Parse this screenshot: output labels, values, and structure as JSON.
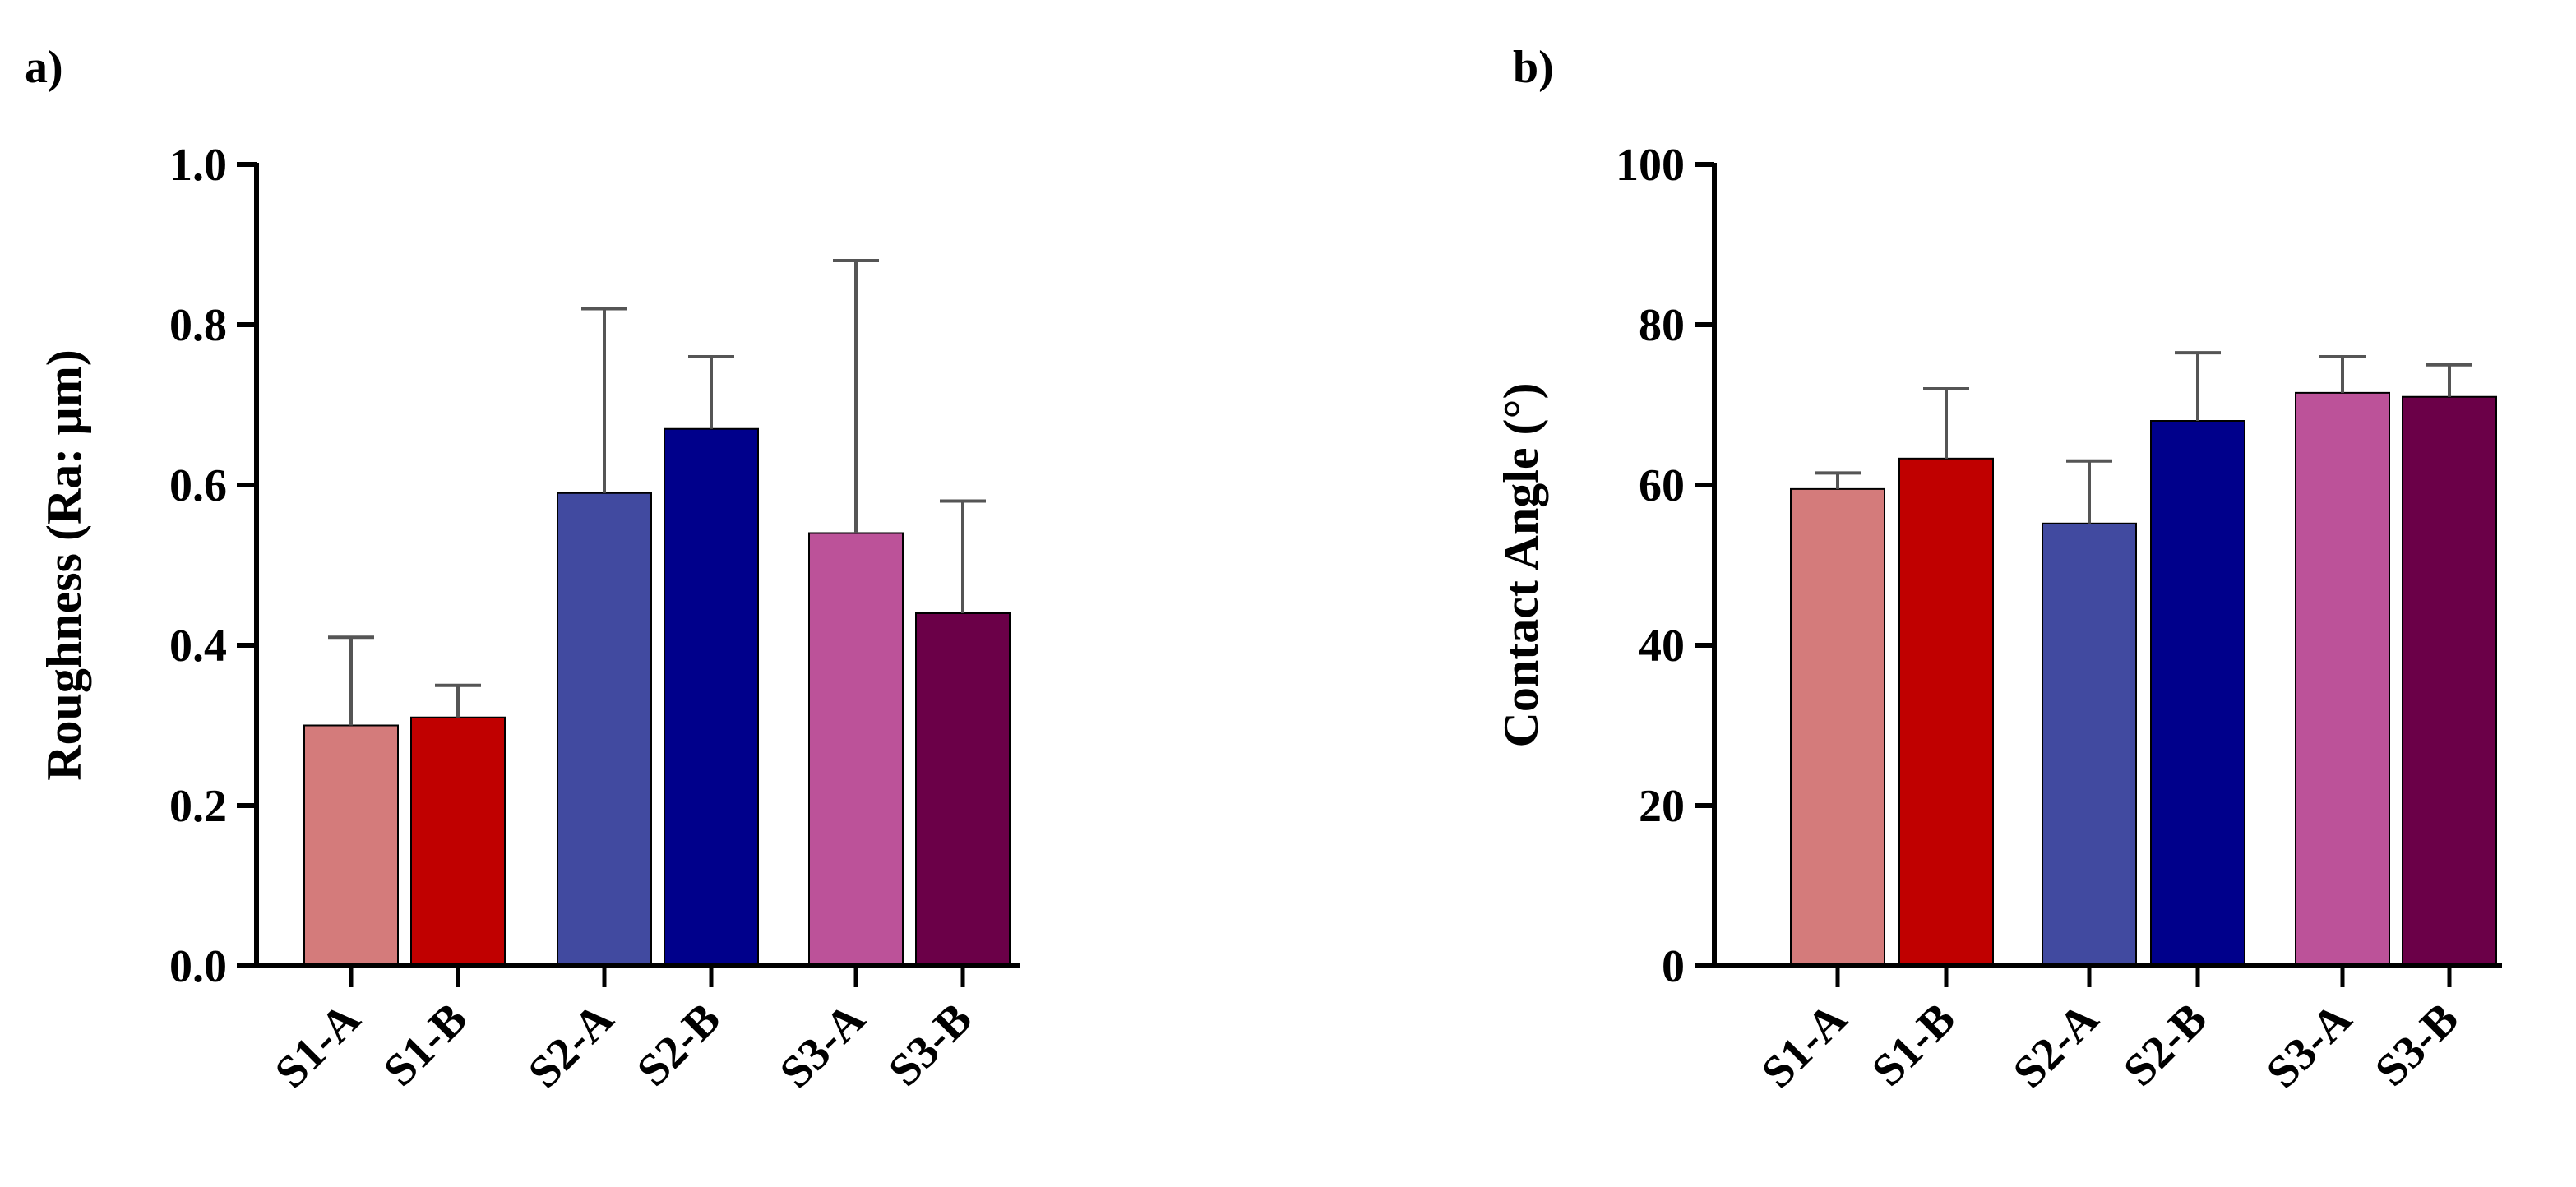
{
  "chart_data": [
    {
      "panel": "a)",
      "type": "bar",
      "title": "",
      "xlabel": "",
      "ylabel": "Roughness (Ra: µm)",
      "ylim": [
        0,
        1.0
      ],
      "yticks": [
        "0.0",
        "0.2",
        "0.4",
        "0.6",
        "0.8",
        "1.0"
      ],
      "ytick_values": [
        0,
        0.2,
        0.4,
        0.6,
        0.8,
        1.0
      ],
      "categories": [
        "S1-A",
        "S1-B",
        "S2-A",
        "S2-B",
        "S3-A",
        "S3-B"
      ],
      "groups": [
        [
          0,
          1
        ],
        [
          2,
          3
        ],
        [
          4,
          5
        ]
      ],
      "values": [
        0.3,
        0.31,
        0.59,
        0.67,
        0.54,
        0.44
      ],
      "error_upper": [
        0.41,
        0.35,
        0.82,
        0.76,
        0.88,
        0.58
      ],
      "colors": [
        "#d47b7b",
        "#c00000",
        "#414aa0",
        "#00008b",
        "#bc5299",
        "#6b0048"
      ]
    },
    {
      "panel": "b)",
      "type": "bar",
      "title": "",
      "xlabel": "",
      "ylabel": "Contact Angle (°)",
      "ylim": [
        0,
        100
      ],
      "yticks": [
        "0",
        "20",
        "40",
        "60",
        "80",
        "100"
      ],
      "ytick_values": [
        0,
        20,
        40,
        60,
        80,
        100
      ],
      "categories": [
        "S1-A",
        "S1-B",
        "S2-A",
        "S2-B",
        "S3-A",
        "S3-B"
      ],
      "groups": [
        [
          0,
          1
        ],
        [
          2,
          3
        ],
        [
          4,
          5
        ]
      ],
      "values": [
        59.5,
        63.3,
        55.2,
        68.0,
        71.5,
        71.0
      ],
      "error_upper": [
        61.5,
        72.0,
        63.0,
        76.5,
        76.0,
        75.0
      ],
      "colors": [
        "#d47b7b",
        "#c00000",
        "#414aa0",
        "#00008b",
        "#bc5299",
        "#6b0048"
      ]
    }
  ]
}
